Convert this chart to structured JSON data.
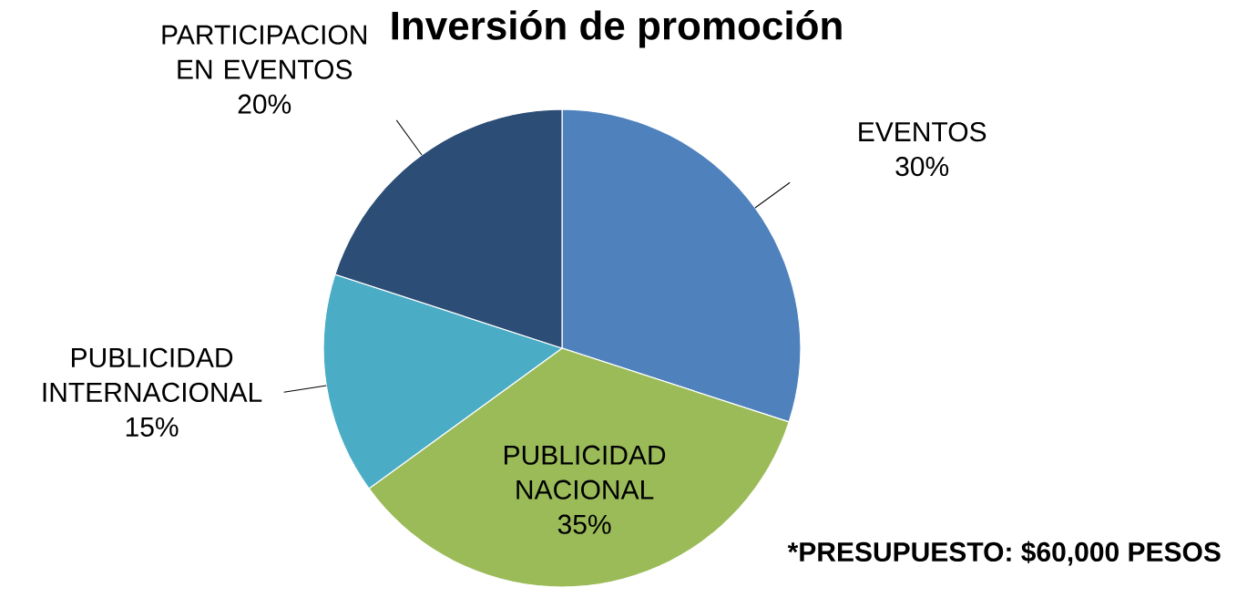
{
  "chart_data": {
    "type": "pie",
    "title": "Inversión de promoción",
    "categories": [
      "EVENTOS",
      "PUBLICIDAD NACIONAL",
      "PUBLICIDAD INTERNACIONAL",
      "PARTICIPACION EN EVENTOS"
    ],
    "values": [
      30,
      35,
      15,
      20
    ],
    "value_labels": [
      "30%",
      "35%",
      "15%",
      "20%"
    ],
    "colors": [
      "#4f81bd",
      "#9bbb59",
      "#4bacc6",
      "#2c4d75"
    ],
    "annotations": [
      "*PRESUPUESTO: $60,000 PESOS"
    ]
  }
}
